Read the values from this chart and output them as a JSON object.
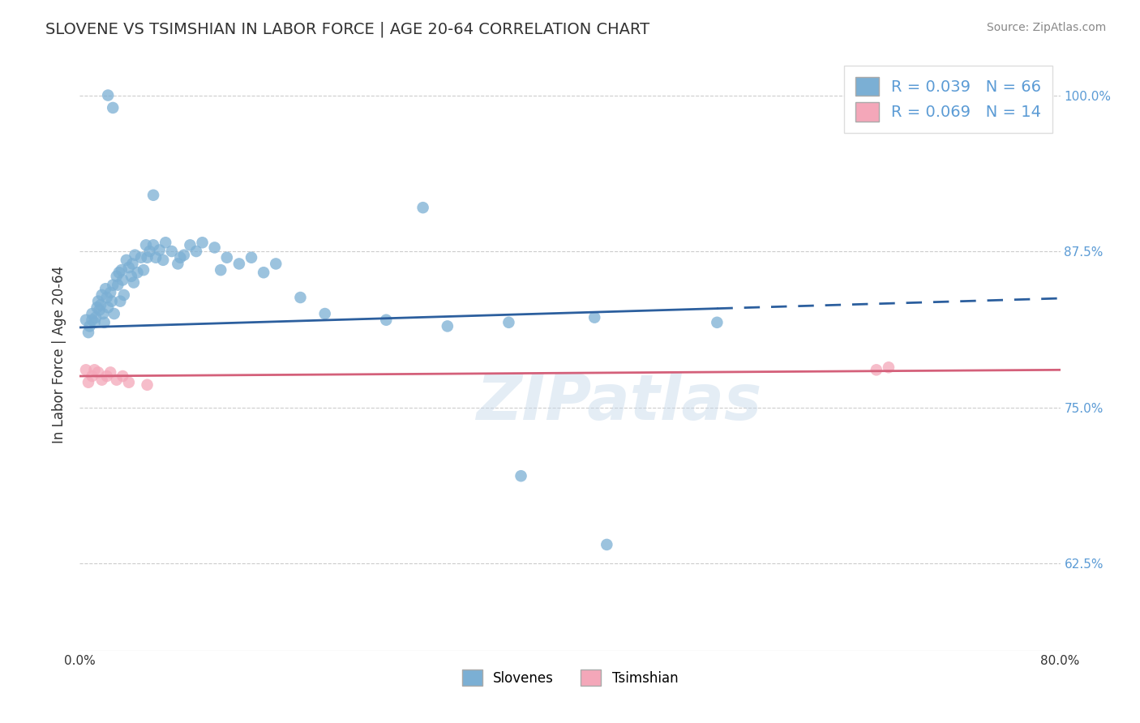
{
  "title": "SLOVENE VS TSIMSHIAN IN LABOR FORCE | AGE 20-64 CORRELATION CHART",
  "source_text": "Source: ZipAtlas.com",
  "ylabel": "In Labor Force | Age 20-64",
  "xlim": [
    0.0,
    0.8
  ],
  "ylim": [
    0.555,
    1.03
  ],
  "yticks": [
    0.625,
    0.75,
    0.875,
    1.0
  ],
  "ytick_labels": [
    "62.5%",
    "75.0%",
    "87.5%",
    "100.0%"
  ],
  "xtick_left_label": "0.0%",
  "xtick_right_label": "80.0%",
  "slovene_color": "#7bafd4",
  "tsimshian_color": "#f4a7b9",
  "slovene_line_color": "#2c5f9e",
  "tsimshian_line_color": "#d4607a",
  "R_slovene": 0.039,
  "N_slovene": 66,
  "R_tsimshian": 0.069,
  "N_tsimshian": 14,
  "background_color": "#ffffff",
  "grid_color": "#cccccc",
  "watermark_text": "ZIPatlas",
  "slovene_x": [
    0.005,
    0.007,
    0.008,
    0.01,
    0.01,
    0.012,
    0.013,
    0.014,
    0.015,
    0.016,
    0.017,
    0.018,
    0.019,
    0.02,
    0.021,
    0.022,
    0.023,
    0.025,
    0.026,
    0.027,
    0.028,
    0.03,
    0.031,
    0.032,
    0.033,
    0.034,
    0.035,
    0.036,
    0.038,
    0.04,
    0.042,
    0.043,
    0.044,
    0.045,
    0.047,
    0.05,
    0.052,
    0.054,
    0.055,
    0.057,
    0.06,
    0.062,
    0.065,
    0.068,
    0.07,
    0.075,
    0.08,
    0.082,
    0.085,
    0.09,
    0.095,
    0.1,
    0.11,
    0.115,
    0.12,
    0.13,
    0.14,
    0.15,
    0.16,
    0.18,
    0.2,
    0.25,
    0.3,
    0.35,
    0.42,
    0.52
  ],
  "slovene_y": [
    0.82,
    0.81,
    0.815,
    0.82,
    0.825,
    0.818,
    0.822,
    0.83,
    0.835,
    0.828,
    0.832,
    0.84,
    0.825,
    0.818,
    0.845,
    0.838,
    0.83,
    0.842,
    0.835,
    0.848,
    0.825,
    0.855,
    0.848,
    0.858,
    0.835,
    0.86,
    0.852,
    0.84,
    0.868,
    0.862,
    0.855,
    0.865,
    0.85,
    0.872,
    0.858,
    0.87,
    0.86,
    0.88,
    0.87,
    0.875,
    0.88,
    0.87,
    0.876,
    0.868,
    0.882,
    0.875,
    0.865,
    0.87,
    0.872,
    0.88,
    0.875,
    0.882,
    0.878,
    0.86,
    0.87,
    0.865,
    0.87,
    0.858,
    0.865,
    0.838,
    0.825,
    0.82,
    0.815,
    0.818,
    0.822,
    0.818
  ],
  "slovene_y_outliers": [
    1.0,
    0.99,
    0.92,
    0.91,
    0.695,
    0.64
  ],
  "slovene_x_outliers": [
    0.023,
    0.027,
    0.06,
    0.28,
    0.36,
    0.43
  ],
  "tsimshian_x": [
    0.005,
    0.007,
    0.01,
    0.012,
    0.015,
    0.018,
    0.022,
    0.025,
    0.03,
    0.035,
    0.04,
    0.055,
    0.65,
    0.66
  ],
  "tsimshian_y": [
    0.78,
    0.77,
    0.775,
    0.78,
    0.778,
    0.772,
    0.775,
    0.778,
    0.772,
    0.775,
    0.77,
    0.768,
    0.78,
    0.782
  ]
}
